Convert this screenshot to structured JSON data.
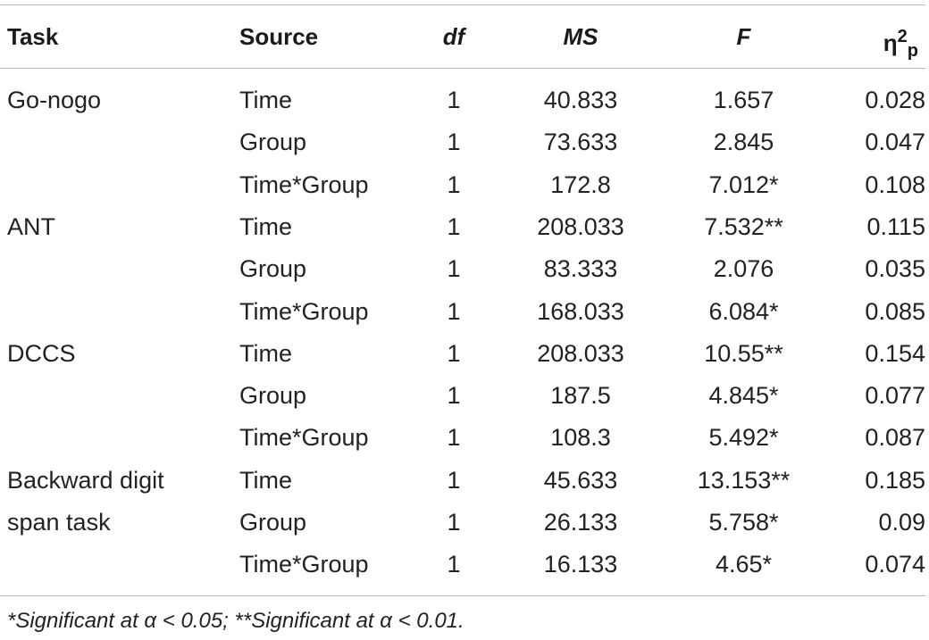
{
  "table": {
    "headers": {
      "task": "Task",
      "source": "Source",
      "df": "df",
      "ms": "MS",
      "f": "F",
      "eta_symbol": "η",
      "eta_sup": "2",
      "eta_sub": "p"
    },
    "rows": [
      {
        "task": "Go-nogo",
        "source": "Time",
        "df": "1",
        "ms": "40.833",
        "f": "1.657",
        "eta": "0.028"
      },
      {
        "task": "",
        "source": "Group",
        "df": "1",
        "ms": "73.633",
        "f": "2.845",
        "eta": "0.047"
      },
      {
        "task": "",
        "source": "Time*Group",
        "df": "1",
        "ms": "172.8",
        "f": "7.012*",
        "eta": "0.108"
      },
      {
        "task": "ANT",
        "source": "Time",
        "df": "1",
        "ms": "208.033",
        "f": "7.532**",
        "eta": "0.115"
      },
      {
        "task": "",
        "source": "Group",
        "df": "1",
        "ms": "83.333",
        "f": "2.076",
        "eta": "0.035"
      },
      {
        "task": "",
        "source": "Time*Group",
        "df": "1",
        "ms": "168.033",
        "f": "6.084*",
        "eta": "0.085"
      },
      {
        "task": "DCCS",
        "source": "Time",
        "df": "1",
        "ms": "208.033",
        "f": "10.55**",
        "eta": "0.154"
      },
      {
        "task": "",
        "source": "Group",
        "df": "1",
        "ms": "187.5",
        "f": "4.845*",
        "eta": "0.077"
      },
      {
        "task": "",
        "source": "Time*Group",
        "df": "1",
        "ms": "108.3",
        "f": "5.492*",
        "eta": "0.087"
      },
      {
        "task": "Backward digit",
        "source": "Time",
        "df": "1",
        "ms": "45.633",
        "f": "13.153**",
        "eta": "0.185"
      },
      {
        "task": "span task",
        "source": "Group",
        "df": "1",
        "ms": "26.133",
        "f": "5.758*",
        "eta": "0.09"
      },
      {
        "task": "",
        "source": "Time*Group",
        "df": "1",
        "ms": "16.133",
        "f": "4.65*",
        "eta": "0.074"
      }
    ],
    "footnote": "*Significant at α < 0.05; **Significant at α < 0.01."
  }
}
